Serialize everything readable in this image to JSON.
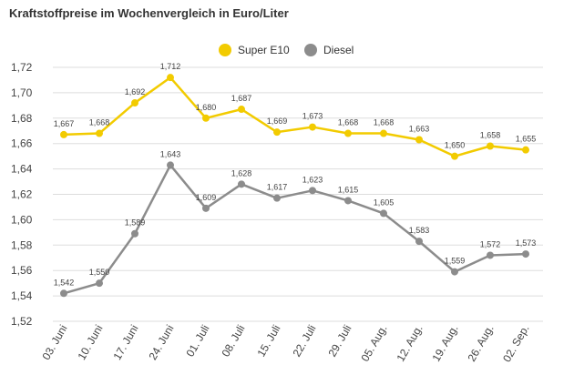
{
  "title": "Kraftstoffpreise im Wochenvergleich in Euro/Liter",
  "colors": {
    "super": "#f2cb00",
    "diesel": "#8c8c8c",
    "grid": "#dddddd"
  },
  "legend": {
    "super": "Super E10",
    "diesel": "Diesel"
  },
  "chart_data": {
    "type": "line",
    "title": "Kraftstoffpreise im Wochenvergleich in Euro/Liter",
    "xlabel": "",
    "ylabel": "",
    "categories": [
      "03. Juni",
      "10. Juni",
      "17. Juni",
      "24. Juni",
      "01. Juli",
      "08. Juli",
      "15. Juli",
      "22. Juli",
      "29. Juli",
      "05. Aug.",
      "12. Aug.",
      "19. Aug.",
      "26. Aug.",
      "02. Sep."
    ],
    "yticks": [
      "1,52",
      "1,54",
      "1,56",
      "1,58",
      "1,60",
      "1,62",
      "1,64",
      "1,66",
      "1,68",
      "1,70",
      "1,72"
    ],
    "ylim": [
      1.52,
      1.72
    ],
    "grid": true,
    "legend_position": "top-center",
    "series": [
      {
        "name": "Super E10",
        "values": [
          1.667,
          1.668,
          1.692,
          1.712,
          1.68,
          1.687,
          1.669,
          1.673,
          1.668,
          1.668,
          1.663,
          1.65,
          1.658,
          1.655
        ],
        "labels": [
          "1,667",
          "1,668",
          "1,692",
          "1,712",
          "1,680",
          "1,687",
          "1,669",
          "1,673",
          "1,668",
          "1,668",
          "1,663",
          "1,650",
          "1,658",
          "1,655"
        ]
      },
      {
        "name": "Diesel",
        "values": [
          1.542,
          1.55,
          1.589,
          1.643,
          1.609,
          1.628,
          1.617,
          1.623,
          1.615,
          1.605,
          1.583,
          1.559,
          1.572,
          1.573
        ],
        "labels": [
          "1,542",
          "1,550",
          "1,589",
          "1,643",
          "1,609",
          "1,628",
          "1,617",
          "1,623",
          "1,615",
          "1,605",
          "1,583",
          "1,559",
          "1,572",
          "1,573"
        ]
      }
    ]
  }
}
